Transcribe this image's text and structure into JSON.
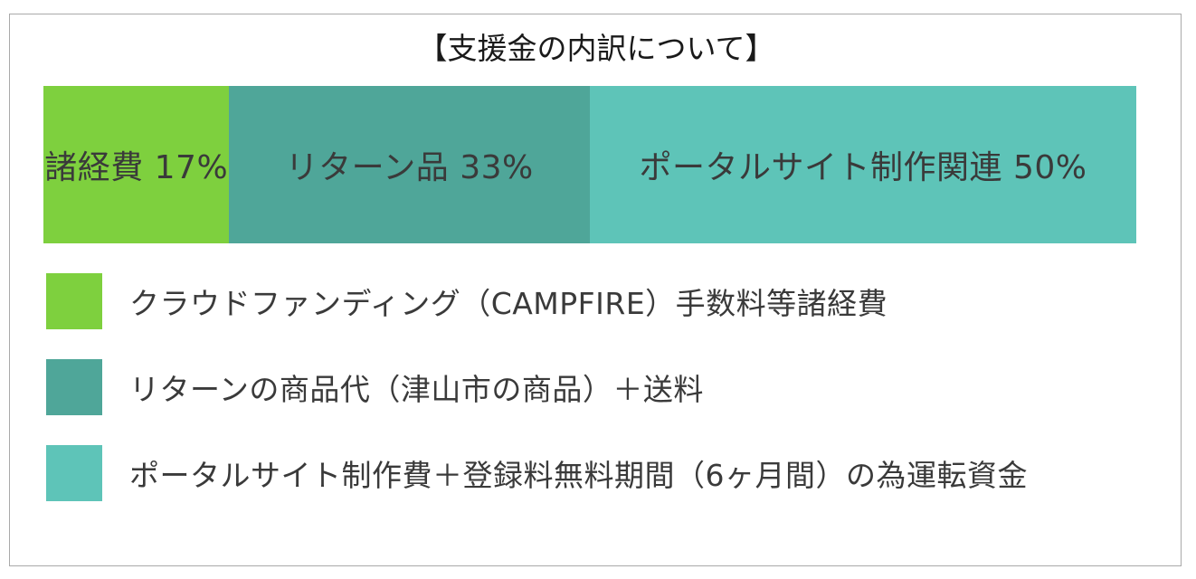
{
  "chart_data": {
    "type": "bar",
    "orientation": "horizontal-stacked-100",
    "title": "【支援金の内訳について】",
    "categories": [
      "諸経費",
      "リターン品",
      "ポータルサイト制作関連"
    ],
    "values": [
      17,
      33,
      50
    ],
    "unit": "%",
    "data_labels": [
      "諸経費 17%",
      "リターン品 33%",
      "ポータルサイト制作関連 50%"
    ],
    "colors": [
      "#7ed03e",
      "#4fa699",
      "#5ec4b8"
    ],
    "legend": {
      "placement": "bottom",
      "entries": [
        "クラウドファンディング（CAMPFIRE）手数料等諸経費",
        "リターンの商品代（津山市の商品）＋送料",
        "ポータルサイト制作費＋登録料無料期間（6ヶ月間）の為運転資金"
      ]
    },
    "grid": false
  }
}
